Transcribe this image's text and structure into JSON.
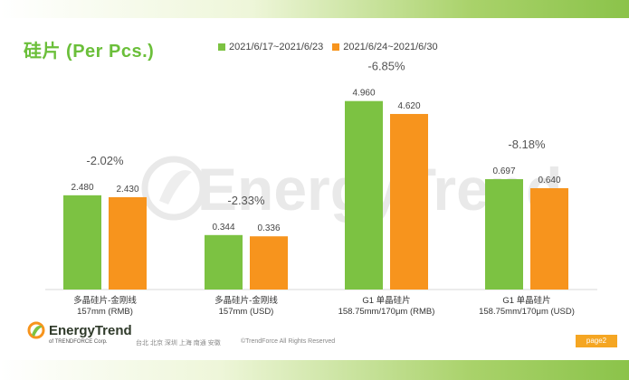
{
  "header": {
    "title": "硅片 (Per Pcs.)"
  },
  "watermark": {
    "text": "EnergyTrend"
  },
  "chart_data": {
    "type": "bar",
    "title": "硅片 (Per Pcs.)",
    "categories": [
      [
        "多晶硅片-金刚线",
        "157mm (RMB)"
      ],
      [
        "多晶硅片-金刚线",
        "157mm (USD)"
      ],
      [
        "G1 单晶硅片",
        "158.75mm/170μm (RMB)"
      ],
      [
        "G1 单晶硅片",
        "158.75mm/170μm (USD)"
      ]
    ],
    "series": [
      {
        "name": "2021/6/17~2021/6/23",
        "color": "#7cc242",
        "values": [
          2.48,
          0.344,
          4.96,
          0.697
        ],
        "labels": [
          "2.480",
          "0.344",
          "4.960",
          "0.697"
        ]
      },
      {
        "name": "2021/6/24~2021/6/30",
        "color": "#f7941d",
        "values": [
          2.43,
          0.336,
          4.62,
          0.64
        ],
        "labels": [
          "2.430",
          "0.336",
          "4.620",
          "0.640"
        ]
      }
    ],
    "changes": [
      "-2.02%",
      "-2.33%",
      "-6.85%",
      "-8.18%"
    ],
    "scales": [
      {
        "groups": [
          0,
          2
        ],
        "max": 5.0
      },
      {
        "groups": [
          1,
          3
        ],
        "max": 1.2
      }
    ],
    "legend_position": "top",
    "grid": false
  },
  "footer": {
    "brand": "EnergyTrend",
    "sub": "of TRENDFORCE Corp.",
    "cities": "台北  北京  深圳  上海  南通  安徽",
    "copyright": "©TrendForce All Rights Reserved",
    "page": "page2"
  }
}
